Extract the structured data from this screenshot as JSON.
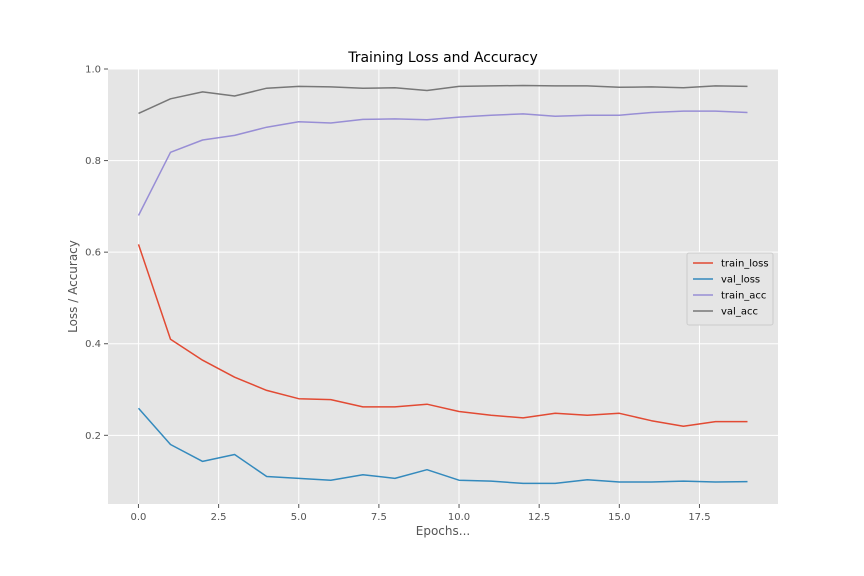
{
  "chart_data": {
    "type": "line",
    "title": "Training Loss and Accuracy",
    "xlabel": "Epochs...",
    "ylabel": "Loss / Accuracy",
    "x": [
      0,
      1,
      2,
      3,
      4,
      5,
      6,
      7,
      8,
      9,
      10,
      11,
      12,
      13,
      14,
      15,
      16,
      17,
      18,
      19
    ],
    "xlim": [
      -0.95,
      19.95
    ],
    "ylim": [
      0.05,
      1.0
    ],
    "xticks": [
      0.0,
      2.5,
      5.0,
      7.5,
      10.0,
      12.5,
      15.0,
      17.5
    ],
    "xtick_labels": [
      "0.0",
      "2.5",
      "5.0",
      "7.5",
      "10.0",
      "12.5",
      "15.0",
      "17.5"
    ],
    "yticks": [
      0.2,
      0.4,
      0.6,
      0.8,
      1.0
    ],
    "ytick_labels": [
      "0.2",
      "0.4",
      "0.6",
      "0.8",
      "1.0"
    ],
    "grid": true,
    "legend_position": "center-right",
    "background_color": "#e5e5e5",
    "series": [
      {
        "name": "train_loss",
        "color": "#e24a33",
        "values": [
          0.617,
          0.41,
          0.364,
          0.327,
          0.298,
          0.28,
          0.278,
          0.262,
          0.262,
          0.268,
          0.252,
          0.244,
          0.238,
          0.248,
          0.244,
          0.248,
          0.232,
          0.22,
          0.23,
          0.23
        ]
      },
      {
        "name": "val_loss",
        "color": "#348abd",
        "values": [
          0.259,
          0.18,
          0.143,
          0.158,
          0.11,
          0.106,
          0.102,
          0.114,
          0.106,
          0.125,
          0.102,
          0.1,
          0.095,
          0.095,
          0.103,
          0.098,
          0.098,
          0.1,
          0.098,
          0.099
        ]
      },
      {
        "name": "train_acc",
        "color": "#988ed5",
        "values": [
          0.68,
          0.818,
          0.845,
          0.855,
          0.873,
          0.885,
          0.882,
          0.89,
          0.891,
          0.889,
          0.895,
          0.899,
          0.902,
          0.897,
          0.899,
          0.899,
          0.905,
          0.908,
          0.908,
          0.905
        ]
      },
      {
        "name": "val_acc",
        "color": "#777777",
        "values": [
          0.903,
          0.935,
          0.95,
          0.941,
          0.958,
          0.962,
          0.961,
          0.958,
          0.959,
          0.953,
          0.962,
          0.963,
          0.964,
          0.963,
          0.963,
          0.96,
          0.961,
          0.959,
          0.963,
          0.962
        ]
      }
    ]
  }
}
